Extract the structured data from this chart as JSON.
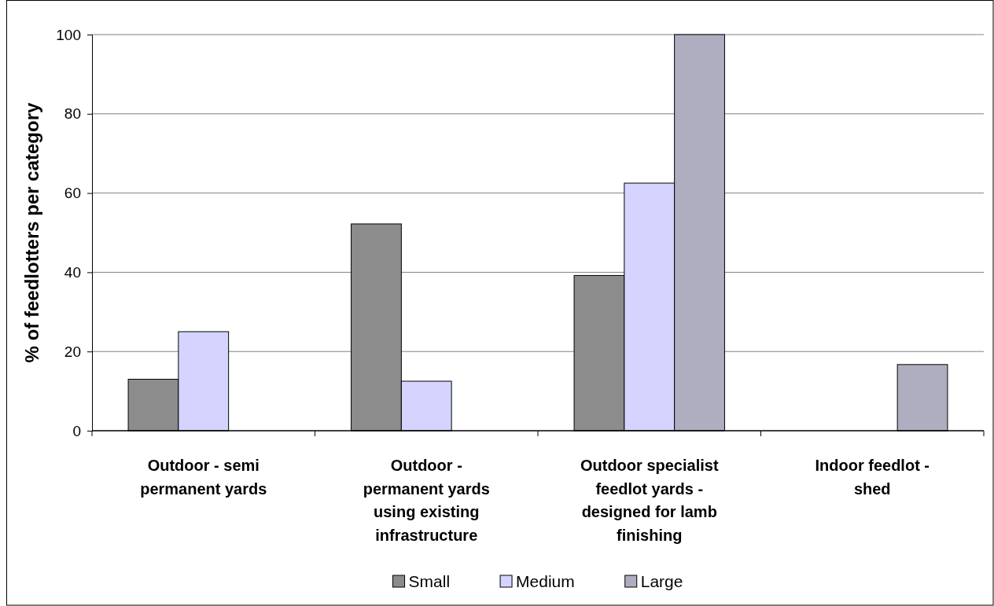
{
  "chart_data": {
    "type": "bar",
    "ylabel": "% of feedlotters per category",
    "categories": [
      "Outdoor - semi permanent yards",
      "Outdoor - permanent yards using existing infrastructure",
      "Outdoor specialist feedlot yards - designed for lamb finishing",
      "Indoor feedlot - shed"
    ],
    "series": [
      {
        "name": "Small",
        "color": "#8c8c8c",
        "values": [
          13,
          52.2,
          39.2,
          null
        ]
      },
      {
        "name": "Medium",
        "color": "#d4d4ff",
        "values": [
          25,
          12.5,
          62.5,
          null
        ]
      },
      {
        "name": "Large",
        "color": "#aeaec0",
        "values": [
          null,
          null,
          100,
          16.7
        ]
      }
    ],
    "ylim": [
      0,
      100
    ],
    "yticks": [
      0,
      20,
      40,
      60,
      80,
      100
    ],
    "grid": "y",
    "legend": "bottom"
  }
}
